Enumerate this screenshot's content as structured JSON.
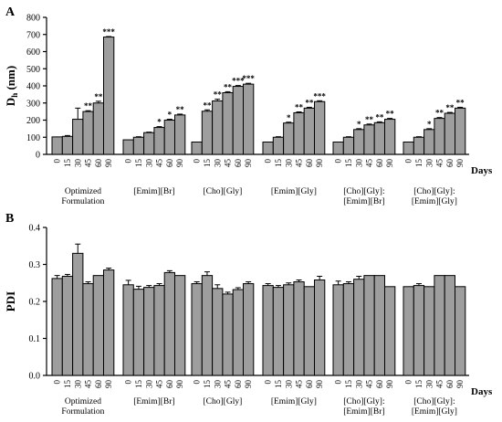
{
  "chart_data": [
    {
      "panel": "A",
      "type": "bar",
      "ylabel_main": "D",
      "ylabel_sub": "h",
      "ylabel_unit": " (nm)",
      "xlabel": "Days",
      "ylim": [
        0,
        800
      ],
      "yticks": [
        0,
        100,
        200,
        300,
        400,
        500,
        600,
        700,
        800
      ],
      "categories": [
        "0",
        "15",
        "30",
        "45",
        "60",
        "90"
      ],
      "groups": [
        {
          "name_lines": [
            "Optimized",
            "Formulation"
          ],
          "values": [
            102,
            105,
            205,
            250,
            300,
            685
          ],
          "errors": [
            0,
            5,
            65,
            5,
            10,
            3
          ],
          "sig": [
            "",
            "",
            "",
            "**",
            "**",
            "***"
          ]
        },
        {
          "name_lines": [
            "[Emim][Br]"
          ],
          "values": [
            85,
            100,
            127,
            157,
            200,
            230
          ],
          "errors": [
            0,
            3,
            3,
            5,
            5,
            5
          ],
          "sig": [
            "",
            "",
            "",
            "*",
            "*",
            "**"
          ]
        },
        {
          "name_lines": [
            "[Cho][Gly]"
          ],
          "values": [
            72,
            252,
            312,
            360,
            397,
            410
          ],
          "errors": [
            0,
            8,
            10,
            6,
            5,
            5
          ],
          "sig": [
            "",
            "**",
            "**",
            "**",
            "***",
            "***"
          ]
        },
        {
          "name_lines": [
            "[Emim][Gly]"
          ],
          "values": [
            72,
            100,
            183,
            243,
            270,
            308
          ],
          "errors": [
            0,
            3,
            5,
            5,
            5,
            5
          ],
          "sig": [
            "",
            "",
            "*",
            "**",
            "**",
            "***"
          ]
        },
        {
          "name_lines": [
            "[Cho][Gly]:",
            "[Emim][Br]"
          ],
          "values": [
            72,
            100,
            145,
            172,
            185,
            205
          ],
          "errors": [
            0,
            3,
            5,
            5,
            5,
            5
          ],
          "sig": [
            "",
            "",
            "*",
            "**",
            "**",
            "**"
          ]
        },
        {
          "name_lines": [
            "[Cho][Gly]:",
            "[Emim][Gly]"
          ],
          "values": [
            72,
            100,
            145,
            210,
            240,
            270
          ],
          "errors": [
            0,
            3,
            5,
            5,
            5,
            5
          ],
          "sig": [
            "",
            "",
            "*",
            "**",
            "**",
            "**"
          ]
        }
      ]
    },
    {
      "panel": "B",
      "type": "bar",
      "ylabel_main": "PDI",
      "xlabel": "Days",
      "ylim": [
        0,
        0.4
      ],
      "yticks": [
        0.0,
        0.1,
        0.2,
        0.3,
        0.4
      ],
      "categories": [
        "0",
        "15",
        "30",
        "45",
        "60",
        "90"
      ],
      "groups": [
        {
          "name_lines": [
            "Optimized",
            "Formulation"
          ],
          "values": [
            0.262,
            0.268,
            0.33,
            0.248,
            0.27,
            0.285
          ],
          "errors": [
            0.008,
            0.005,
            0.025,
            0.005,
            0,
            0.005
          ]
        },
        {
          "name_lines": [
            "[Emim][Br]"
          ],
          "values": [
            0.245,
            0.233,
            0.238,
            0.243,
            0.278,
            0.27
          ],
          "errors": [
            0.012,
            0.008,
            0.005,
            0.005,
            0.005,
            0
          ]
        },
        {
          "name_lines": [
            "[Cho][Gly]"
          ],
          "values": [
            0.248,
            0.27,
            0.235,
            0.22,
            0.232,
            0.248
          ],
          "errors": [
            0.005,
            0.01,
            0.01,
            0.005,
            0.005,
            0.005
          ]
        },
        {
          "name_lines": [
            "[Emim][Gly]"
          ],
          "values": [
            0.243,
            0.238,
            0.245,
            0.253,
            0.24,
            0.258
          ],
          "errors": [
            0.005,
            0.005,
            0.005,
            0.005,
            0,
            0.01
          ]
        },
        {
          "name_lines": [
            "[Cho][Gly]:",
            "[Emim][Br]"
          ],
          "values": [
            0.245,
            0.248,
            0.26,
            0.27,
            0.27,
            0.24
          ],
          "errors": [
            0.01,
            0.005,
            0.008,
            0,
            0,
            0
          ]
        },
        {
          "name_lines": [
            "[Cho][Gly]:",
            "[Emim][Gly]"
          ],
          "values": [
            0.24,
            0.243,
            0.24,
            0.27,
            0.27,
            0.24
          ],
          "errors": [
            0,
            0.005,
            0,
            0,
            0,
            0
          ]
        }
      ]
    }
  ]
}
